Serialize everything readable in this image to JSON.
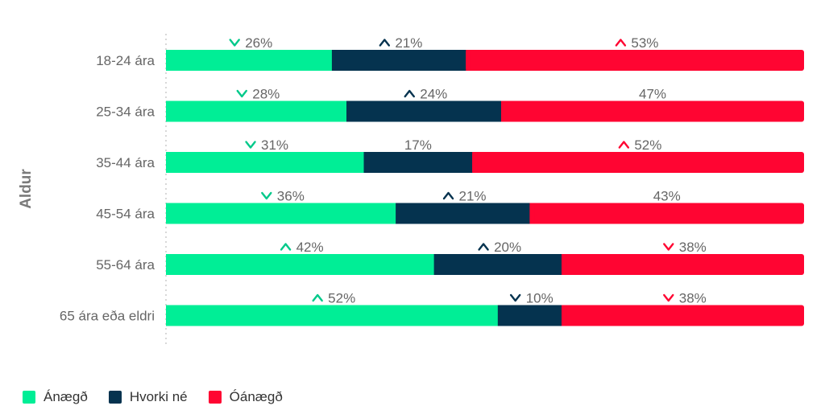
{
  "chart_data": {
    "type": "bar",
    "orientation": "horizontal",
    "stacked": true,
    "ylabel": "Aldur",
    "categories": [
      "18-24 ára",
      "25-34 ára",
      "35-44 ára",
      "45-54 ára",
      "55-64 ára",
      "65 ára eða eldri"
    ],
    "series": [
      {
        "name": "Ánægð",
        "color": "#00ee96",
        "values": [
          26,
          28,
          31,
          36,
          42,
          52
        ],
        "labels": [
          "26%",
          "28%",
          "31%",
          "36%",
          "42%",
          "52%"
        ],
        "trend": [
          "down",
          "down",
          "down",
          "down",
          "up",
          "up"
        ]
      },
      {
        "name": "Hvorki né",
        "color": "#05334f",
        "values": [
          21,
          24,
          17,
          21,
          20,
          10
        ],
        "labels": [
          "21%",
          "24%",
          "17%",
          "21%",
          "20%",
          "10%"
        ],
        "trend": [
          "up",
          "up",
          "none",
          "up",
          "up",
          "down"
        ]
      },
      {
        "name": "Óánægð",
        "color": "#ff0532",
        "values": [
          53,
          47,
          52,
          43,
          38,
          38
        ],
        "labels": [
          "53%",
          "47%",
          "52%",
          "43%",
          "38%",
          "38%"
        ],
        "trend": [
          "up",
          "none",
          "up",
          "none",
          "down",
          "down"
        ]
      }
    ],
    "xlim": [
      0,
      100
    ],
    "legend_position": "bottom-left",
    "trend_icon_colors": {
      "Ánægð": "#00c98a",
      "Hvorki né": "#05334f",
      "Óánægð": "#ff0532"
    }
  },
  "legend": {
    "items": [
      {
        "label": "Ánægð",
        "color": "#00ee96"
      },
      {
        "label": "Hvorki né",
        "color": "#05334f"
      },
      {
        "label": "Óánægð",
        "color": "#ff0532"
      }
    ]
  }
}
